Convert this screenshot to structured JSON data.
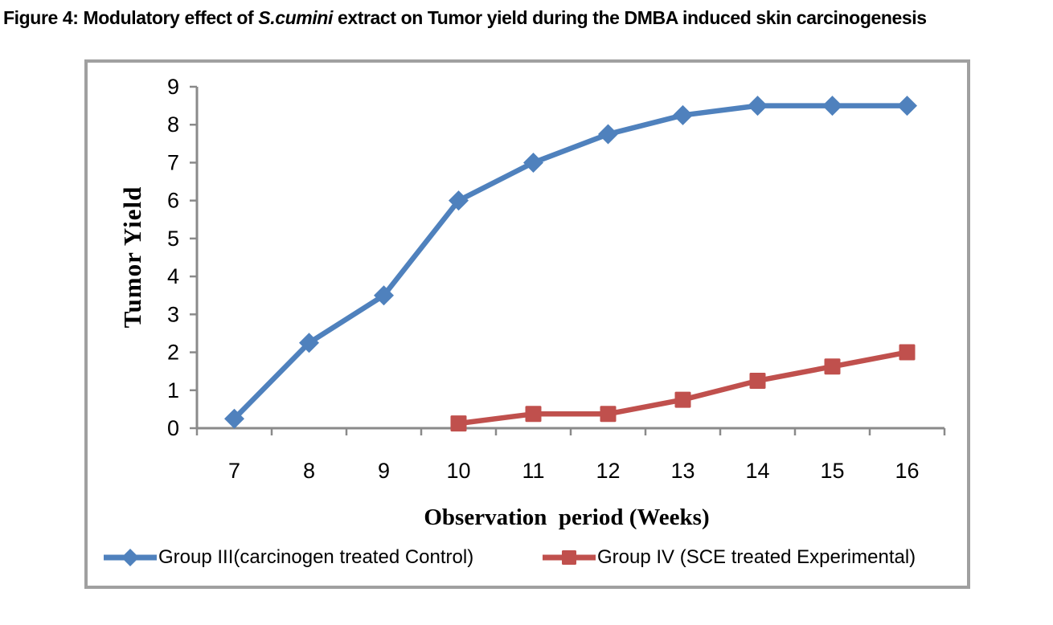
{
  "figure_title": {
    "prefix": "Figure 4: Modulatory effect of ",
    "species": "S.cumini",
    "suffix": " extract on Tumor yield during the DMBA induced skin carcinogenesis"
  },
  "chart_data": {
    "type": "line",
    "title": "",
    "xlabel": "Observation  period (Weeks)",
    "ylabel": "Tumor Yield",
    "categories": [
      "7",
      "8",
      "9",
      "10",
      "11",
      "12",
      "13",
      "14",
      "15",
      "16"
    ],
    "y_ticks": [
      0,
      1,
      2,
      3,
      4,
      5,
      6,
      7,
      8,
      9
    ],
    "ylim": [
      0,
      9
    ],
    "grid": false,
    "legend_position": "bottom",
    "axis_color": "#8A8A8A",
    "frame_color": "#A0A0A0",
    "tick_label_color": "#000000",
    "series": [
      {
        "name": "Group III(carcinogen treated Control)",
        "color": "#4F81BD",
        "marker": "diamond",
        "x": [
          7,
          8,
          9,
          10,
          11,
          12,
          13,
          14,
          15,
          16
        ],
        "values": [
          0.25,
          2.25,
          3.5,
          6,
          7,
          7.75,
          8.25,
          8.5,
          8.5,
          8.5
        ]
      },
      {
        "name": "Group IV (SCE treated Experimental)",
        "color": "#C0504D",
        "marker": "square",
        "x": [
          10,
          11,
          12,
          13,
          14,
          15,
          16
        ],
        "values": [
          0.125,
          0.375,
          0.375,
          0.75,
          1.25,
          1.625,
          2
        ]
      }
    ]
  }
}
